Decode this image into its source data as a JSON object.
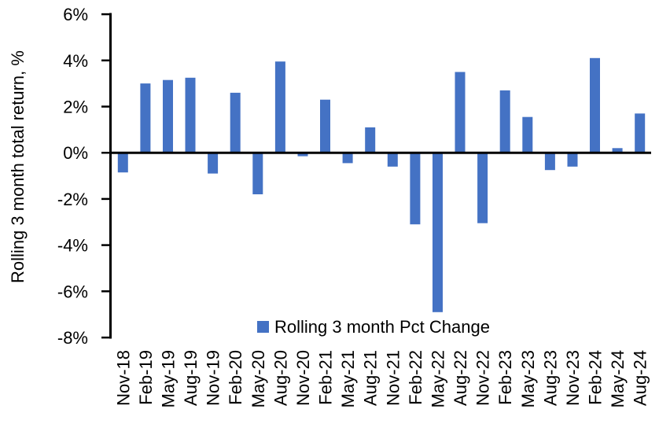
{
  "chart_data": {
    "type": "bar",
    "title": "",
    "ylabel": "Rolling 3 month total return, %",
    "xlabel": "",
    "categories": [
      "Nov-18",
      "Feb-19",
      "May-19",
      "Aug-19",
      "Nov-19",
      "Feb-20",
      "May-20",
      "Aug-20",
      "Nov-20",
      "Feb-21",
      "May-21",
      "Aug-21",
      "Nov-21",
      "Feb-22",
      "May-22",
      "Aug-22",
      "Nov-22",
      "Feb-23",
      "May-23",
      "Aug-23",
      "Nov-23",
      "Feb-24",
      "May-24",
      "Aug-24"
    ],
    "series": [
      {
        "name": "Rolling 3 month Pct Change",
        "values": [
          -0.85,
          3.0,
          3.15,
          3.25,
          -0.9,
          2.6,
          -1.8,
          3.95,
          -0.15,
          2.3,
          -0.45,
          1.1,
          -0.6,
          -3.1,
          -6.9,
          3.5,
          -3.05,
          2.7,
          1.55,
          -0.75,
          -0.6,
          4.1,
          0.2,
          1.7
        ]
      }
    ],
    "ylim": [
      -8,
      6
    ],
    "ytick_step": 2,
    "ytick_labels": [
      "6%",
      "4%",
      "2%",
      "0%",
      "-2%",
      "-4%",
      "-6%",
      "-8%"
    ],
    "ytick_values": [
      6,
      4,
      2,
      0,
      -2,
      -4,
      -6,
      -8
    ],
    "grid": false,
    "legend_position": "bottom-center",
    "colors": {
      "bar": "#4472C4",
      "axis": "#000000",
      "text": "#000000",
      "background": "#FFFFFF"
    }
  }
}
